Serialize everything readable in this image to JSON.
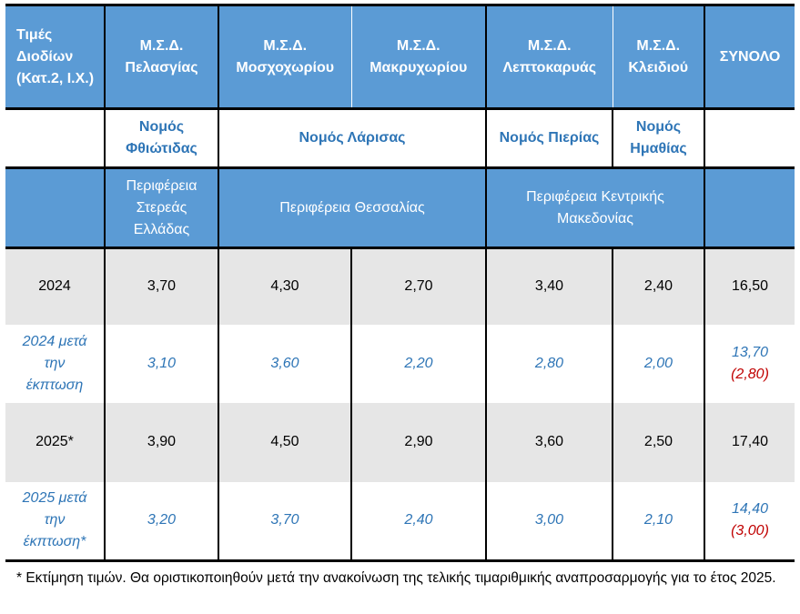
{
  "header": {
    "corner": "Τιμές Διοδίων (Κατ.2, Ι.Χ.)",
    "stations": [
      "Μ.Σ.Δ. Πελασγίας",
      "Μ.Σ.Δ. Μοσχοχωρίου",
      "Μ.Σ.Δ. Μακρυχωρίου",
      "Μ.Σ.Δ. Λεπτοκαρυάς",
      "Μ.Σ.Δ. Κλειδιού"
    ],
    "total": "ΣΥΝΟΛΟ"
  },
  "prefectures": [
    "Νομός Φθιώτιδας",
    "Νομός Λάρισας",
    "Νομός Πιερίας",
    "Νομός Ημαθίας"
  ],
  "regions": [
    "Περιφέρεια Στερεάς Ελλάδας",
    "Περιφέρεια Θεσσαλίας",
    "Περιφέρεια Κεντρικής Μακεδονίας"
  ],
  "rows": [
    {
      "label": "2024",
      "values": [
        "3,70",
        "4,30",
        "2,70",
        "3,40",
        "2,40"
      ],
      "total": "16,50",
      "saving": ""
    },
    {
      "label": "2024 μετά την έκπτωση",
      "values": [
        "3,10",
        "3,60",
        "2,20",
        "2,80",
        "2,00"
      ],
      "total": "13,70",
      "saving": "(2,80)"
    },
    {
      "label": "2025*",
      "values": [
        "3,90",
        "4,50",
        "2,90",
        "3,60",
        "2,50"
      ],
      "total": "17,40",
      "saving": ""
    },
    {
      "label": "2025 μετά την έκπτωση*",
      "values": [
        "3,20",
        "3,70",
        "2,40",
        "3,00",
        "2,10"
      ],
      "total": "14,40",
      "saving": "(3,00)"
    }
  ],
  "footnote": "* Εκτίμηση τιμών. Θα οριστικοποιηθούν μετά την ανακοίνωση της τελικής τιμαριθμικής αναπροσαρμογής για το έτος 2025.",
  "colors": {
    "header_blue": "#5b9bd5",
    "text_blue": "#2e75b6",
    "grey_row": "#e6e6e6",
    "discount_red": "#c00000"
  }
}
